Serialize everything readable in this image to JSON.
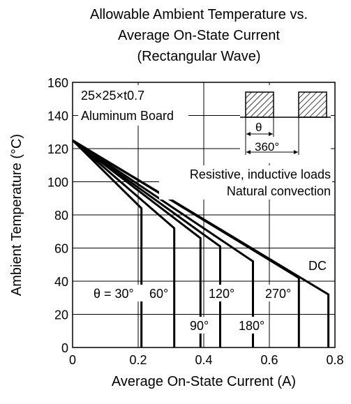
{
  "chart_data": {
    "type": "line",
    "title_lines": [
      "Allowable Ambient Temperature vs.",
      "Average On-State Current",
      "(Rectangular Wave)"
    ],
    "xlabel": "Average On-State Current  (A)",
    "ylabel": "Ambient Temperature  (°C)",
    "xlim": [
      0,
      0.8
    ],
    "ylim": [
      0,
      160
    ],
    "x_ticks": [
      "0",
      "0.2",
      "0.4",
      "0.6",
      "0.8"
    ],
    "x_tick_values": [
      0,
      0.2,
      0.4,
      0.6,
      0.8
    ],
    "y_ticks": [
      "0",
      "20",
      "40",
      "60",
      "80",
      "100",
      "120",
      "140",
      "160"
    ],
    "y_tick_values": [
      0,
      20,
      40,
      60,
      80,
      100,
      120,
      140,
      160
    ],
    "grid": true,
    "series": [
      {
        "name": "θ = 30°",
        "points": [
          [
            0,
            125
          ],
          [
            0.21,
            84
          ],
          [
            0.21,
            0
          ]
        ]
      },
      {
        "name": "60°",
        "points": [
          [
            0,
            125
          ],
          [
            0.31,
            72
          ],
          [
            0.31,
            0
          ]
        ]
      },
      {
        "name": "90°",
        "points": [
          [
            0,
            125
          ],
          [
            0.39,
            66
          ],
          [
            0.39,
            0
          ]
        ]
      },
      {
        "name": "120°",
        "points": [
          [
            0,
            125
          ],
          [
            0.45,
            61
          ],
          [
            0.45,
            0
          ]
        ]
      },
      {
        "name": "180°",
        "points": [
          [
            0,
            125
          ],
          [
            0.55,
            52
          ],
          [
            0.55,
            0
          ]
        ]
      },
      {
        "name": "270°",
        "points": [
          [
            0,
            125
          ],
          [
            0.69,
            42
          ],
          [
            0.69,
            0
          ]
        ]
      },
      {
        "name": "DC",
        "points": [
          [
            0,
            125
          ],
          [
            0.78,
            32
          ],
          [
            0.78,
            0
          ]
        ]
      }
    ],
    "annotations": {
      "board_line1": "25×25×t0.7",
      "board_line2": "Aluminum Board",
      "theta_symbol": "θ",
      "period_label": "360°",
      "load_line1": "Resistive, inductive loads",
      "load_line2": "Natural convection"
    }
  }
}
